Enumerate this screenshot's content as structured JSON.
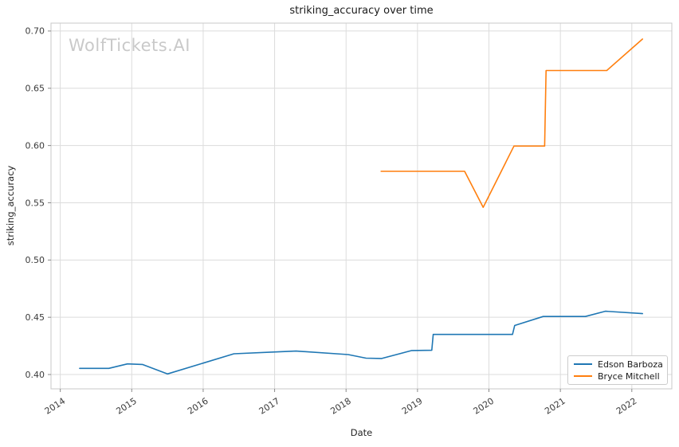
{
  "watermark": "WolfTickets.AI",
  "chart_data": {
    "type": "line",
    "title": "striking_accuracy over time",
    "xlabel": "Date",
    "ylabel": "striking_accuracy",
    "x_unit": "decimal_year",
    "grid": true,
    "legend_position": "lower right",
    "xlim": [
      2013.87,
      2022.56
    ],
    "ylim": [
      0.3875,
      0.7069
    ],
    "x_ticks": [
      2014,
      2015,
      2016,
      2017,
      2018,
      2019,
      2020,
      2021,
      2022
    ],
    "y_ticks": [
      0.4,
      0.45,
      0.5,
      0.55,
      0.6,
      0.65,
      0.7
    ],
    "series": [
      {
        "name": "Edson Barboza",
        "color": "#1f77b4",
        "points": [
          [
            2014.27,
            0.4054
          ],
          [
            2014.68,
            0.4054
          ],
          [
            2014.94,
            0.4093
          ],
          [
            2015.15,
            0.4088
          ],
          [
            2015.5,
            0.4005
          ],
          [
            2016.43,
            0.4181
          ],
          [
            2016.95,
            0.4196
          ],
          [
            2017.3,
            0.4205
          ],
          [
            2018.03,
            0.4174
          ],
          [
            2018.28,
            0.4143
          ],
          [
            2018.5,
            0.414
          ],
          [
            2018.92,
            0.421
          ],
          [
            2019.2,
            0.4212
          ],
          [
            2019.22,
            0.435
          ],
          [
            2020.33,
            0.435
          ],
          [
            2020.36,
            0.4428
          ],
          [
            2020.76,
            0.4507
          ],
          [
            2021.35,
            0.4507
          ],
          [
            2021.63,
            0.4553
          ],
          [
            2022.15,
            0.4532
          ]
        ]
      },
      {
        "name": "Bryce Mitchell",
        "color": "#ff7f0e",
        "points": [
          [
            2018.49,
            0.5775
          ],
          [
            2019.66,
            0.5775
          ],
          [
            2019.92,
            0.546
          ],
          [
            2020.35,
            0.5995
          ],
          [
            2020.78,
            0.5995
          ],
          [
            2020.8,
            0.6655
          ],
          [
            2021.65,
            0.6655
          ],
          [
            2022.15,
            0.693
          ]
        ]
      }
    ]
  },
  "colors": {
    "background": "#ffffff",
    "grid": "#dcdcdc",
    "spine": "#c8c8c8",
    "tick": "#8a8a8a",
    "title_text": "#1a1a1a",
    "tick_text": "#3b3b3b",
    "watermark": "#c9c9c9",
    "series_blue": "#1f77b4",
    "series_orange": "#ff7f0e"
  }
}
